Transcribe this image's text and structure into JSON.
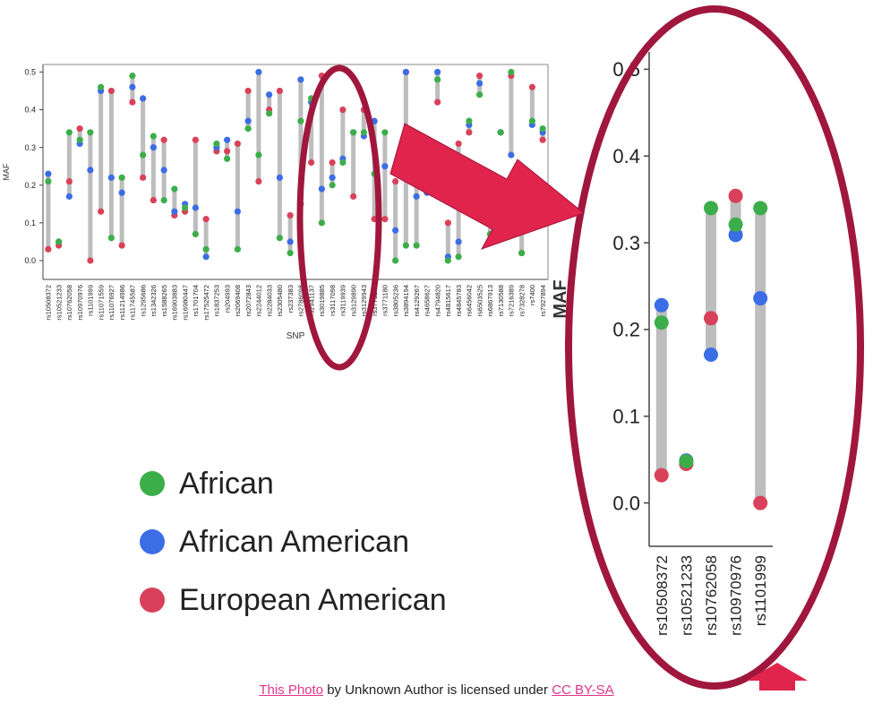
{
  "chart_data": [
    {
      "type": "dumbbell",
      "ylabel": "MAF",
      "xlabel": "SNP",
      "ylim": [
        -0.05,
        0.52
      ],
      "yticks": [
        "0.0",
        "0.1",
        "0.2",
        "0.3",
        "0.4",
        "0.5"
      ],
      "series_names": [
        "African",
        "African American",
        "European American"
      ],
      "categories": [
        "rs10508372",
        "rs10521233",
        "rs10762058",
        "rs10970976",
        "rs1101999",
        "rs11071559",
        "rs11076927",
        "rs11214986",
        "rs11745587",
        "rs1295686",
        "rs1342326",
        "rs1588265",
        "rs16903883",
        "rs16980447",
        "rs1701704",
        "rs17525472",
        "rs1837253",
        "rs204993",
        "rs2069408",
        "rs2072843",
        "rs2244012",
        "rs2284033",
        "rs2305480",
        "rs237383",
        "rs2786098",
        "rs2941137",
        "rs3019885",
        "rs3117098",
        "rs3119939",
        "rs3129890",
        "rs3129943",
        "rs3771166",
        "rs3771180",
        "rs3805236",
        "rs3894194",
        "rs4129267",
        "rs4658627",
        "rs4794820",
        "rs4815617",
        "rs4845783",
        "rs6456042",
        "rs6503525",
        "rs6867913",
        "rs7130588",
        "rs7216389",
        "rs7328278",
        "rs7400",
        "rs7927894"
      ],
      "african": [
        0.21,
        0.05,
        0.34,
        0.32,
        0.34,
        0.46,
        0.06,
        0.22,
        0.49,
        0.28,
        0.33,
        0.16,
        0.19,
        0.14,
        0.07,
        0.03,
        0.31,
        0.27,
        0.03,
        0.35,
        0.28,
        0.39,
        0.06,
        0.02,
        0.37,
        0.43,
        0.1,
        0.2,
        0.26,
        0.34,
        0.34,
        0.23,
        0.34,
        0.0,
        0.04,
        0.04,
        0.19,
        0.48,
        0.0,
        0.01,
        0.37,
        0.44,
        0.07,
        0.34,
        0.5,
        0.02,
        0.37,
        0.35
      ],
      "african_american": [
        0.23,
        0.05,
        0.17,
        0.31,
        0.24,
        0.45,
        0.22,
        0.18,
        0.46,
        0.43,
        0.3,
        0.24,
        0.13,
        0.15,
        0.14,
        0.01,
        0.3,
        0.32,
        0.13,
        0.37,
        0.5,
        0.44,
        0.22,
        0.05,
        0.48,
        0.42,
        0.19,
        0.22,
        0.27,
        0.34,
        0.33,
        0.37,
        0.25,
        0.08,
        0.5,
        0.17,
        0.18,
        0.5,
        0.01,
        0.05,
        0.36,
        0.47,
        0.12,
        0.34,
        0.28,
        0.1,
        0.36,
        0.34
      ],
      "european_american": [
        0.03,
        0.04,
        0.21,
        0.35,
        0.0,
        0.13,
        0.45,
        0.04,
        0.42,
        0.22,
        0.16,
        0.32,
        0.12,
        0.13,
        0.32,
        0.11,
        0.29,
        0.29,
        0.31,
        0.45,
        0.21,
        0.4,
        0.45,
        0.12,
        0.15,
        0.26,
        0.49,
        0.26,
        0.4,
        0.17,
        0.4,
        0.11,
        0.11,
        0.21,
        0.5,
        0.25,
        0.29,
        0.42,
        0.1,
        0.31,
        0.34,
        0.49,
        0.12,
        0.34,
        0.49,
        0.02,
        0.46,
        0.32
      ]
    },
    {
      "type": "dumbbell",
      "ylabel": "MAF",
      "ylim": [
        -0.05,
        0.52
      ],
      "yticks": [
        "0.0",
        "0.1",
        "0.2",
        "0.3",
        "0.4",
        "0.5"
      ],
      "categories": [
        "rs10508372",
        "rs10521233",
        "rs10762058",
        "rs10970976",
        "rs1101999"
      ],
      "african": [
        0.208,
        0.048,
        0.34,
        0.321,
        0.34
      ],
      "african_american": [
        0.228,
        0.049,
        0.171,
        0.309,
        0.236
      ],
      "european_american": [
        0.032,
        0.045,
        0.213,
        0.354,
        0.0
      ]
    }
  ],
  "colors": {
    "african": "#3cae49",
    "african_american": "#3b6de6",
    "european_american": "#d9415a",
    "range_bar": "#bdbdbd",
    "highlight": "#a0173d",
    "arrow": "#e0244c"
  },
  "legend": [
    {
      "label": "African",
      "color": "#3cae49"
    },
    {
      "label": "African American",
      "color": "#3b6de6"
    },
    {
      "label": "European American",
      "color": "#d9415a"
    }
  ],
  "credit": {
    "link1": "This Photo",
    "middle": " by Unknown Author is licensed under ",
    "link2": "CC BY-SA"
  }
}
